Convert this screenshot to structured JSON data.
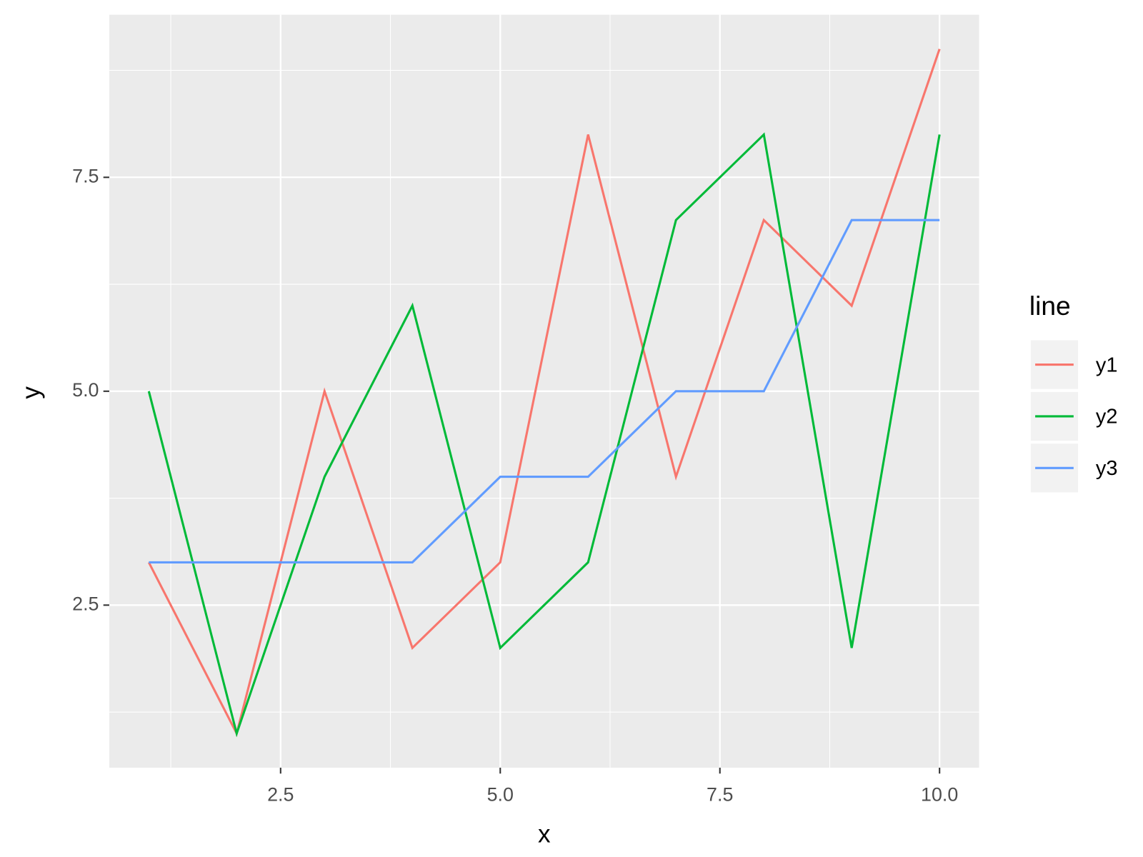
{
  "chart_data": {
    "type": "line",
    "x": [
      1,
      2,
      3,
      4,
      5,
      6,
      7,
      8,
      9,
      10
    ],
    "series": [
      {
        "name": "y1",
        "color": "#F8766D",
        "values": [
          3,
          1,
          5,
          2,
          3,
          8,
          4,
          7,
          6,
          9
        ]
      },
      {
        "name": "y2",
        "color": "#00BA38",
        "values": [
          5,
          1,
          4,
          6,
          2,
          3,
          7,
          8,
          2,
          8
        ]
      },
      {
        "name": "y3",
        "color": "#619CFF",
        "values": [
          3,
          3,
          3,
          3,
          4,
          4,
          5,
          5,
          7,
          7
        ]
      }
    ],
    "x_label": "x",
    "y_label": "y",
    "legend_title": "line",
    "legend_position": "right",
    "xlim": [
      0.55,
      10.45
    ],
    "xticks": [
      {
        "value": 2.5,
        "label": "2.5"
      },
      {
        "value": 5,
        "label": "5.0"
      },
      {
        "value": 7.5,
        "label": "7.5"
      },
      {
        "value": 10,
        "label": "10.0"
      }
    ],
    "ylim": [
      0.6,
      9.4
    ],
    "yticks": [
      {
        "value": 2.5,
        "label": "2.5"
      },
      {
        "value": 5,
        "label": "5.0"
      },
      {
        "value": 7.5,
        "label": "7.5"
      }
    ],
    "grid": true
  }
}
